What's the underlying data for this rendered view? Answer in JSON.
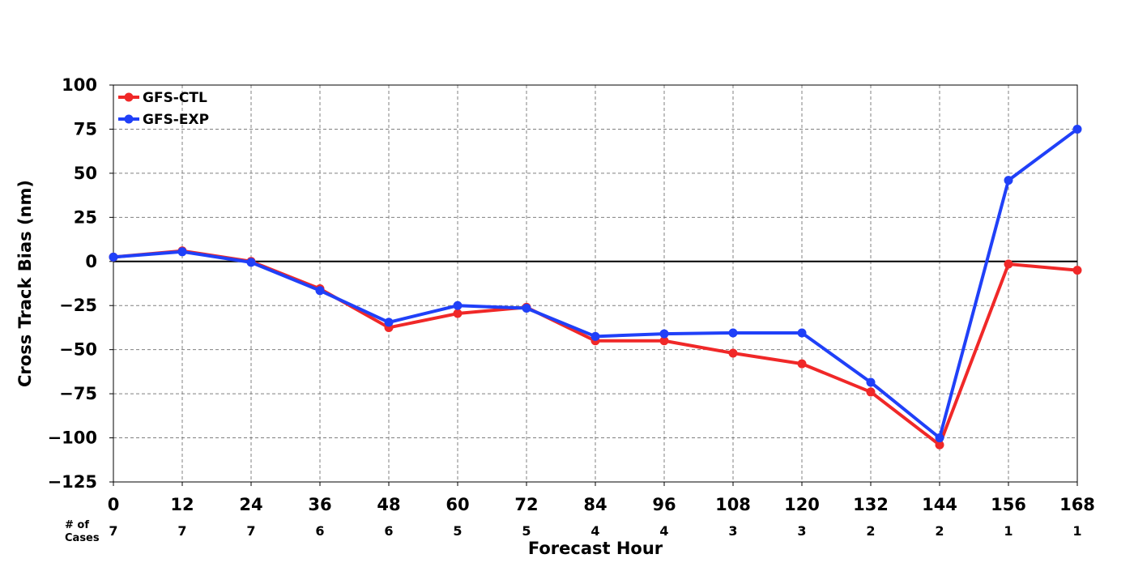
{
  "chart_data": {
    "type": "line",
    "xlabel": "Forecast Hour",
    "ylabel": "Cross Track Bias (nm)",
    "x": [
      0,
      12,
      24,
      36,
      48,
      60,
      72,
      84,
      96,
      108,
      120,
      132,
      144,
      156,
      168
    ],
    "x_tick_labels": [
      "0",
      "12",
      "24",
      "36",
      "48",
      "60",
      "72",
      "84",
      "96",
      "108",
      "120",
      "132",
      "144",
      "156",
      "168"
    ],
    "xlim": [
      0,
      168
    ],
    "ylim": [
      -125,
      100
    ],
    "y_ticks": [
      100,
      75,
      50,
      25,
      0,
      -25,
      -50,
      -75,
      -100,
      -125
    ],
    "y_tick_labels": [
      "100",
      "75",
      "50",
      "25",
      "0",
      "−25",
      "−50",
      "−75",
      "−100",
      "−125"
    ],
    "grid": true,
    "zero_line": true,
    "legend_position": "top-left",
    "cases_label_line1": "# of",
    "cases_label_line2": "Cases",
    "cases": [
      "7",
      "7",
      "7",
      "6",
      "6",
      "5",
      "5",
      "4",
      "4",
      "3",
      "3",
      "2",
      "2",
      "1",
      "1"
    ],
    "series": [
      {
        "name": "GFS-CTL",
        "color": "#f02828",
        "values": [
          2.5,
          6,
          0,
          -15.5,
          -37.5,
          -29.5,
          -26,
          -45,
          -45,
          -52,
          -58,
          -74,
          -104,
          -1.5,
          -5
        ]
      },
      {
        "name": "GFS-EXP",
        "color": "#2040f8",
        "values": [
          2.5,
          5.5,
          -0.5,
          -16.5,
          -34.5,
          -25,
          -26.5,
          -42.5,
          -41,
          -40.5,
          -40.5,
          -68.5,
          -100,
          46,
          75
        ]
      }
    ]
  }
}
